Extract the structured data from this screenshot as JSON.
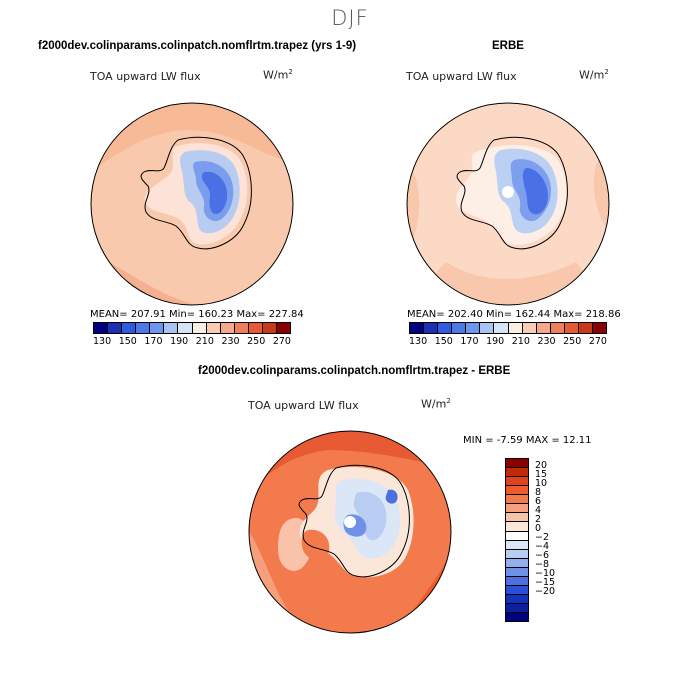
{
  "main_title": "DJF",
  "panel1": {
    "title": "f2000dev.colinparams.colinpatch.nomflrtm.trapez (yrs 1-9)",
    "variable": "TOA upward LW flux",
    "units": "W/m",
    "units_sup": "2",
    "stats": "MEAN= 207.91  Min= 160.23  Max= 227.84"
  },
  "panel2": {
    "title": "ERBE",
    "variable": "TOA upward LW flux",
    "units": "W/m",
    "units_sup": "2",
    "stats": "MEAN= 202.40  Min= 162.44  Max= 218.86"
  },
  "panel3": {
    "title": "f2000dev.colinparams.colinpatch.nomflrtm.trapez - ERBE",
    "variable": "TOA upward LW flux",
    "units": "W/m",
    "units_sup": "2",
    "stats": "MIN =   -7.59 MAX =   12.11"
  },
  "colorbar_abs": {
    "ticks": [
      "130",
      "150",
      "170",
      "190",
      "210",
      "230",
      "250",
      "270"
    ],
    "colors": [
      "#000080",
      "#1b2fb3",
      "#2e5be0",
      "#4a7ae8",
      "#6c97ee",
      "#a9c3f3",
      "#d7e3f8",
      "#fdeee4",
      "#f9cdb5",
      "#f5a98a",
      "#ef7f5c",
      "#e85a33",
      "#c93a1a",
      "#8b0000"
    ]
  },
  "colorbar_diff": {
    "ticks": [
      "20",
      "15",
      "10",
      "8",
      "6",
      "4",
      "2",
      "0",
      "−2",
      "−4",
      "−6",
      "−8",
      "−10",
      "−15",
      "−20"
    ],
    "colors": [
      "#8b0000",
      "#c22a0a",
      "#e2431c",
      "#ee5b2d",
      "#f27a4d",
      "#f59f7c",
      "#f8c3a9",
      "#fbe6da",
      "#ffffff",
      "#dbe6f7",
      "#b8cdf1",
      "#94b0ec",
      "#6e90e6",
      "#4c70e0",
      "#2b4fd6",
      "#1432c0",
      "#0c1f9e",
      "#000080"
    ]
  }
}
